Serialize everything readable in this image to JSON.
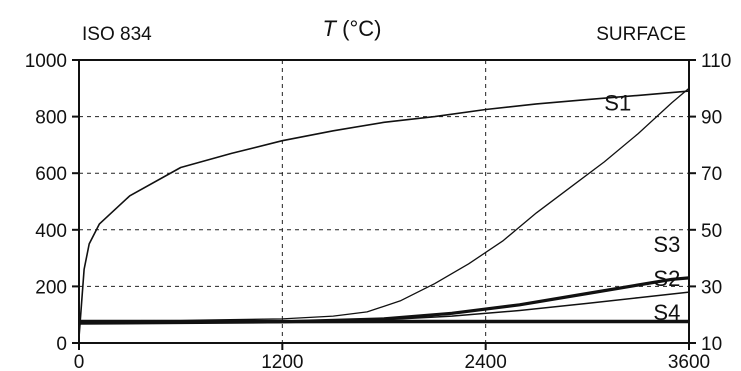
{
  "chart_data": {
    "type": "line",
    "title": "T (°C)",
    "title_italic_part": "T",
    "title_rest": " (°C)",
    "left_label": "ISO 834",
    "right_label": "SURFACE",
    "x": {
      "ticks": [
        0,
        1200,
        2400,
        3600
      ],
      "range": [
        0,
        3600
      ]
    },
    "y_left": {
      "ticks": [
        0,
        200,
        400,
        600,
        800,
        1000
      ],
      "range": [
        0,
        1000
      ]
    },
    "y_right": {
      "ticks": [
        10,
        30,
        50,
        70,
        90,
        110
      ],
      "range": [
        10,
        110
      ]
    },
    "grid": "dashed",
    "series": [
      {
        "name": "",
        "axis": "left",
        "label_on_chart": "",
        "points": [
          [
            0,
            20
          ],
          [
            30,
            260
          ],
          [
            60,
            350
          ],
          [
            120,
            420
          ],
          [
            300,
            520
          ],
          [
            600,
            620
          ],
          [
            900,
            670
          ],
          [
            1200,
            715
          ],
          [
            1500,
            750
          ],
          [
            1800,
            780
          ],
          [
            2100,
            800
          ],
          [
            2400,
            825
          ],
          [
            2700,
            845
          ],
          [
            3000,
            860
          ],
          [
            3300,
            875
          ],
          [
            3600,
            890
          ]
        ]
      },
      {
        "name": "S1",
        "axis": "right",
        "label_on_chart": "S1",
        "points": [
          [
            0,
            18
          ],
          [
            600,
            18
          ],
          [
            1200,
            18.5
          ],
          [
            1500,
            19.5
          ],
          [
            1700,
            21
          ],
          [
            1900,
            25
          ],
          [
            2100,
            31
          ],
          [
            2300,
            38
          ],
          [
            2500,
            46
          ],
          [
            2700,
            56
          ],
          [
            2900,
            65
          ],
          [
            3100,
            74
          ],
          [
            3300,
            84
          ],
          [
            3500,
            95
          ],
          [
            3600,
            100
          ]
        ]
      },
      {
        "name": "S3",
        "axis": "right",
        "label_on_chart": "S3",
        "points": [
          [
            0,
            17
          ],
          [
            1200,
            17.5
          ],
          [
            1800,
            18.5
          ],
          [
            2200,
            20.5
          ],
          [
            2600,
            23.5
          ],
          [
            3000,
            27.5
          ],
          [
            3300,
            30.5
          ],
          [
            3500,
            32.5
          ],
          [
            3600,
            33
          ]
        ]
      },
      {
        "name": "S2",
        "axis": "right",
        "label_on_chart": "S2",
        "points": [
          [
            0,
            17
          ],
          [
            1200,
            17.5
          ],
          [
            1800,
            18.2
          ],
          [
            2200,
            19.5
          ],
          [
            2600,
            21.5
          ],
          [
            3000,
            24
          ],
          [
            3300,
            26
          ],
          [
            3600,
            28
          ]
        ]
      },
      {
        "name": "S4",
        "axis": "right",
        "label_on_chart": "S4",
        "points": [
          [
            0,
            17.5
          ],
          [
            1800,
            17.6
          ],
          [
            3600,
            17.6
          ]
        ]
      }
    ]
  }
}
